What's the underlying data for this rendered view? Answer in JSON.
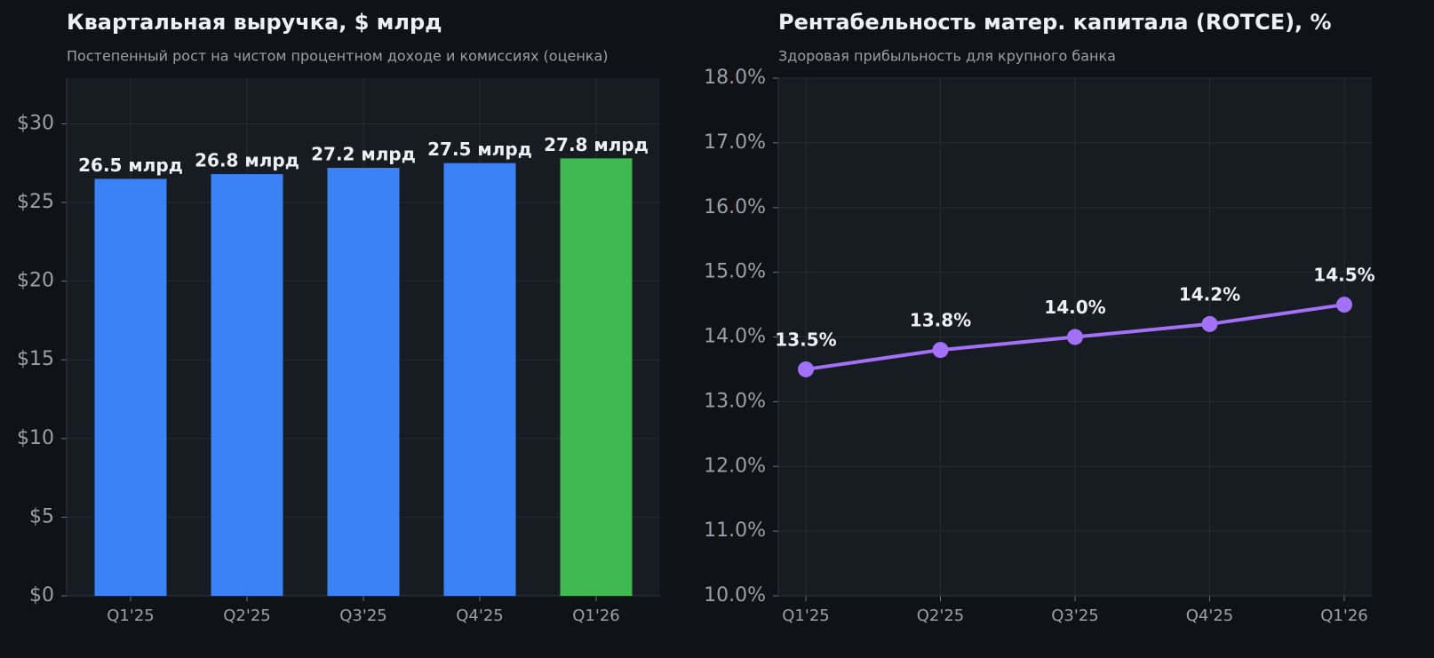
{
  "chart_data": [
    {
      "type": "bar",
      "title": "Квартальная выручка, $ млрд",
      "subtitle": "Постепенный рост на чистом процентном доходе и комиссиях (оценка)",
      "categories": [
        "Q1'25",
        "Q2'25",
        "Q3'25",
        "Q4'25",
        "Q1'26"
      ],
      "values": [
        26.5,
        26.8,
        27.2,
        27.5,
        27.8
      ],
      "value_labels": [
        "26.5 млрд",
        "26.8 млрд",
        "27.2 млрд",
        "27.5 млрд",
        "27.8 млрд"
      ],
      "colors": [
        "#3b82f6",
        "#3b82f6",
        "#3b82f6",
        "#3b82f6",
        "#3fb950"
      ],
      "ylim": [
        0,
        32.9
      ],
      "yticks": [
        {
          "value": 0,
          "label": "$0"
        },
        {
          "value": 5,
          "label": "$5"
        },
        {
          "value": 10,
          "label": "$10"
        },
        {
          "value": 15,
          "label": "$15"
        },
        {
          "value": 20,
          "label": "$20"
        },
        {
          "value": 25,
          "label": "$25"
        },
        {
          "value": 30,
          "label": "$30"
        }
      ],
      "grid": true
    },
    {
      "type": "line",
      "title": "Рентабельность матер. капитала (ROTCE), %",
      "subtitle": "Здоровая прибыльность для крупного банка",
      "categories": [
        "Q1'25",
        "Q2'25",
        "Q3'25",
        "Q4'25",
        "Q1'26"
      ],
      "values": [
        13.5,
        13.8,
        14.0,
        14.2,
        14.5
      ],
      "value_labels": [
        "13.5%",
        "13.8%",
        "14.0%",
        "14.2%",
        "14.5%"
      ],
      "color": "#a371f7",
      "ylim": [
        10,
        18
      ],
      "yticks": [
        {
          "value": 10,
          "label": "10.0%"
        },
        {
          "value": 11,
          "label": "11.0%"
        },
        {
          "value": 12,
          "label": "12.0%"
        },
        {
          "value": 13,
          "label": "13.0%"
        },
        {
          "value": 14,
          "label": "14.0%"
        },
        {
          "value": 15,
          "label": "15.0%"
        },
        {
          "value": 16,
          "label": "16.0%"
        },
        {
          "value": 17,
          "label": "17.0%"
        },
        {
          "value": 18,
          "label": "18.0%"
        }
      ],
      "grid": true
    }
  ]
}
